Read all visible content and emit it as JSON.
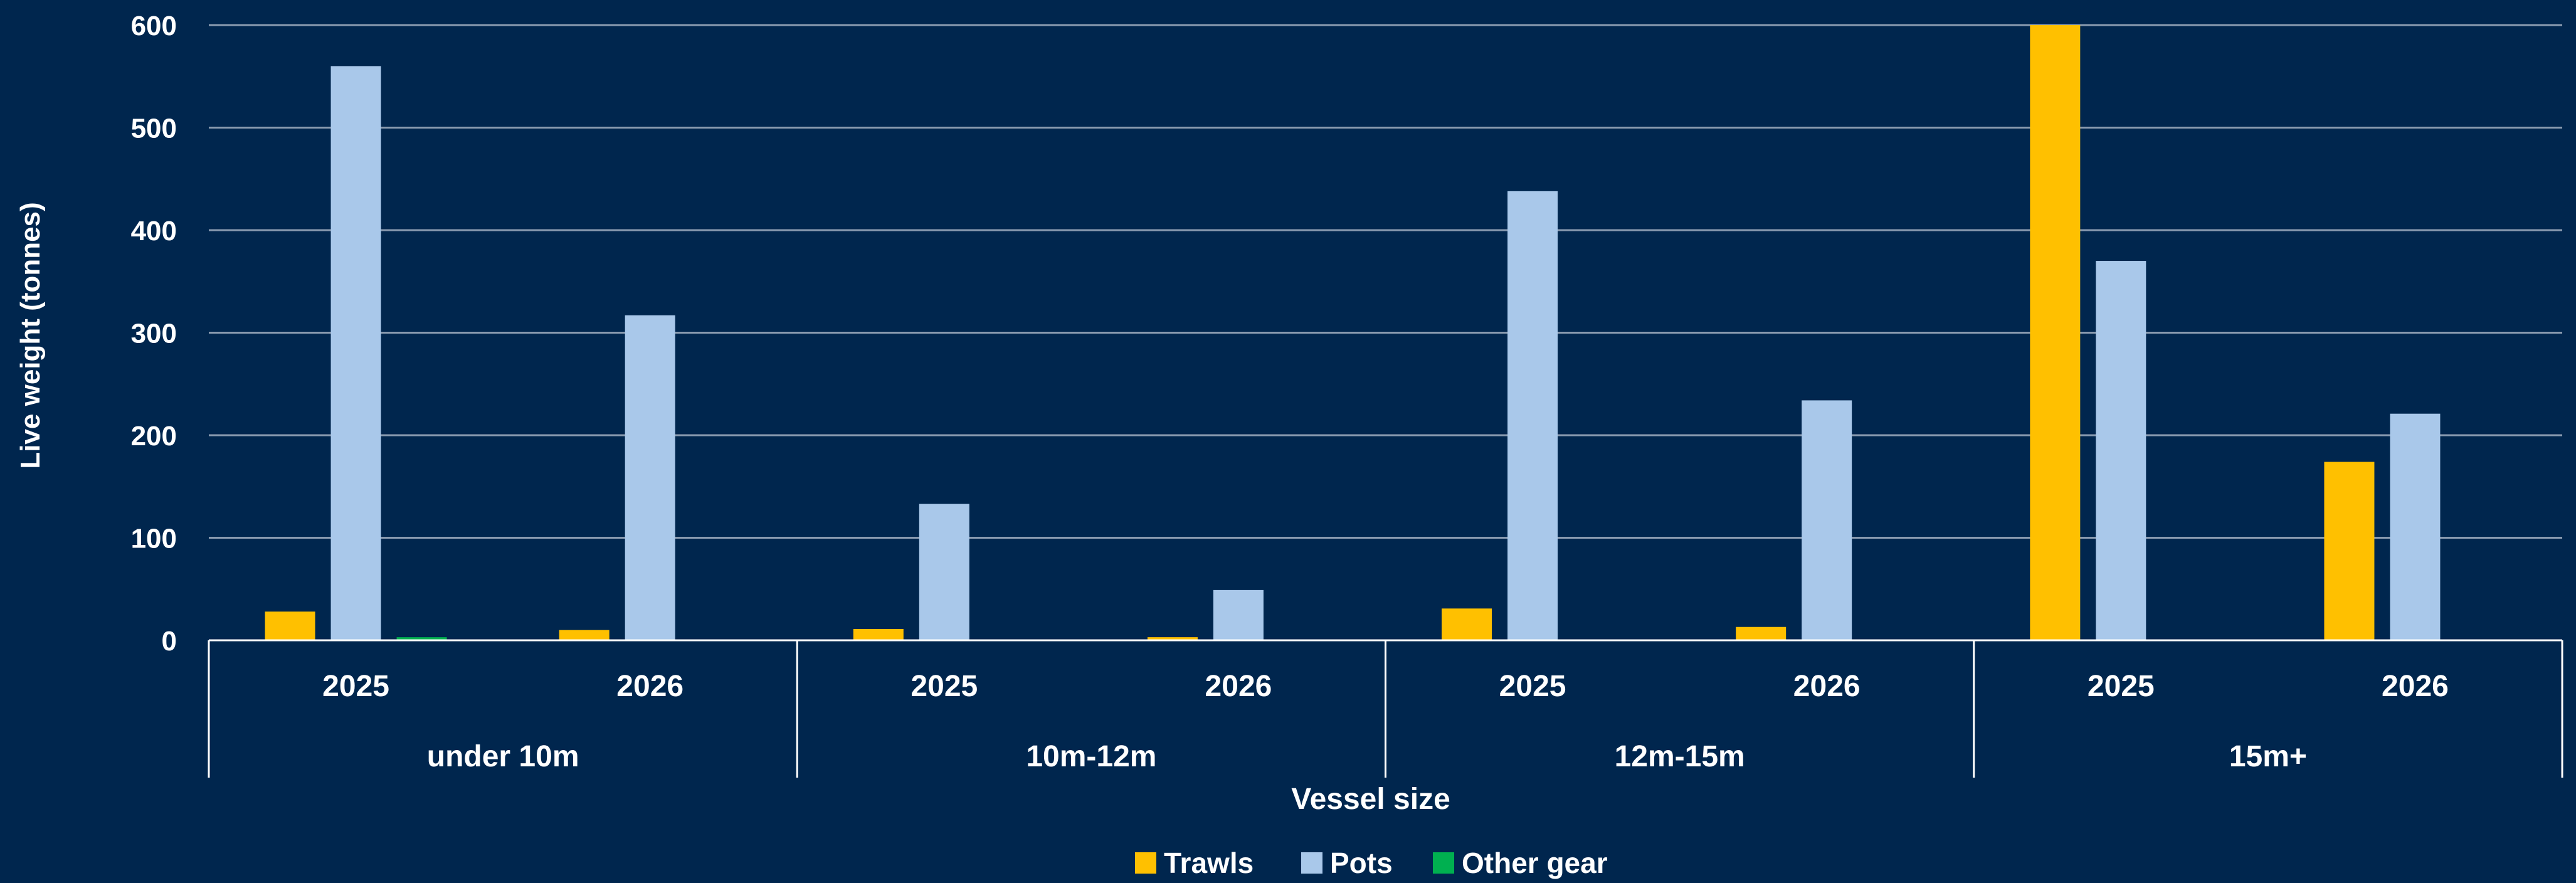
{
  "chart_data": {
    "type": "bar",
    "xlabel": "Vessel size",
    "ylabel": "Live weight (tonnes)",
    "ylim": [
      0,
      600
    ],
    "yticks": [
      "0",
      "100",
      "200",
      "300",
      "400",
      "500",
      "600"
    ],
    "grid": true,
    "legend_position": "bottom",
    "groups": [
      "under 10m",
      "10m-12m",
      "12m-15m",
      "15m+"
    ],
    "categories": [
      "2025",
      "2026",
      "2025",
      "2026",
      "2025",
      "2026",
      "2025",
      "2026"
    ],
    "series": [
      {
        "name": "Trawls",
        "color": "#FFC000",
        "values": [
          28,
          10,
          11,
          3,
          31,
          13,
          600,
          174
        ]
      },
      {
        "name": "Pots",
        "color": "#A9C8EA",
        "values": [
          560,
          317,
          133,
          49,
          438,
          234,
          370,
          221
        ]
      },
      {
        "name": "Other gear",
        "color": "#00B050",
        "values": [
          3,
          0,
          0,
          0,
          0,
          0,
          0,
          0
        ]
      }
    ]
  }
}
